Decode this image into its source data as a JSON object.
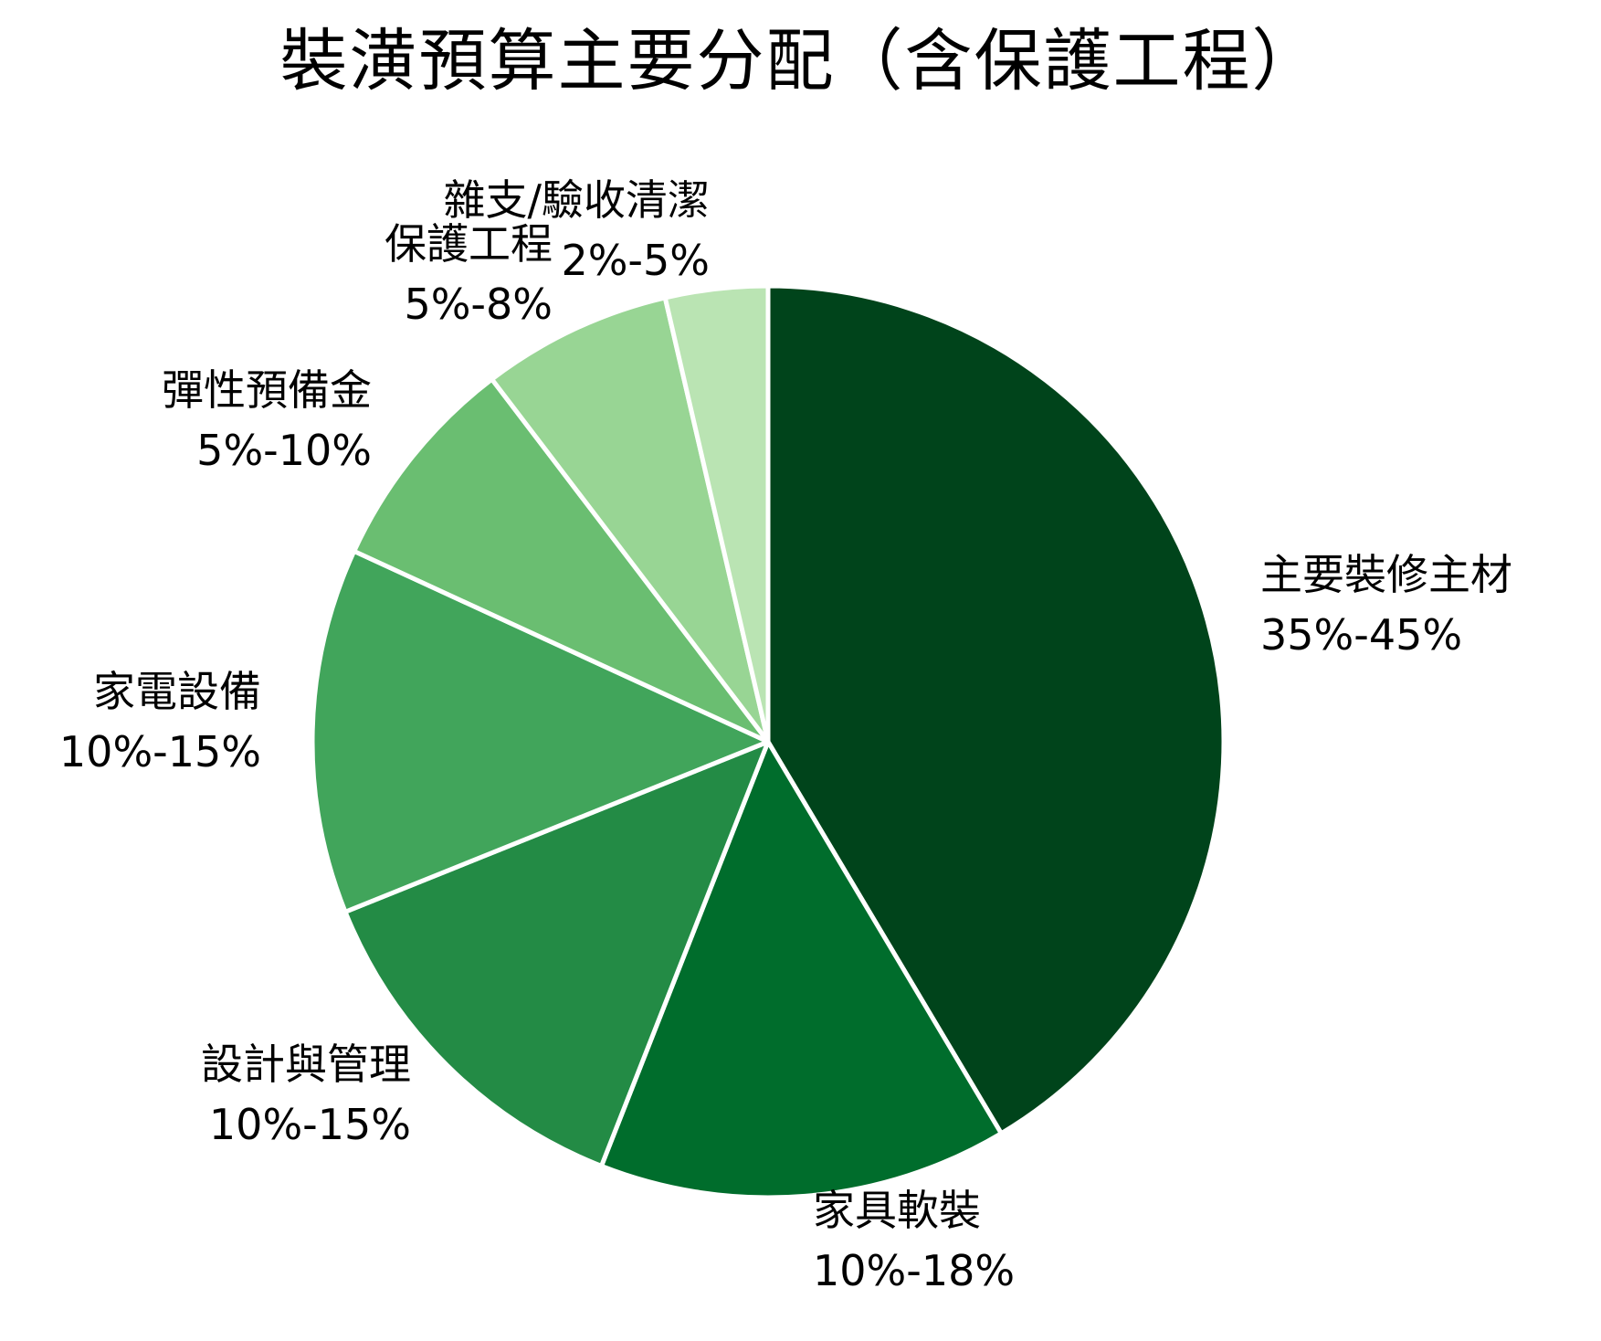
{
  "chart_data": {
    "type": "pie",
    "title": "裝潢預算主要分配（含保護工程）",
    "start_angle_deg": 90,
    "direction": "clockwise",
    "slices": [
      {
        "name": "主要裝修主材",
        "range": "35%-45%",
        "value": 40,
        "color": "#00441b"
      },
      {
        "name": "家具軟裝",
        "range": "10%-18%",
        "value": 14,
        "color": "#006d2c"
      },
      {
        "name": "設計與管理",
        "range": "10%-15%",
        "value": 12.5,
        "color": "#238b45"
      },
      {
        "name": "家電設備",
        "range": "10%-15%",
        "value": 12.5,
        "color": "#41a55b"
      },
      {
        "name": "彈性預備金",
        "range": "5%-10%",
        "value": 7.5,
        "color": "#6abe71"
      },
      {
        "name": "保護工程",
        "range": "5%-8%",
        "value": 6.5,
        "color": "#98d594"
      },
      {
        "name": "雜支/驗收清潔",
        "range": "2%-5%",
        "value": 3.5,
        "color": "#bae4b3"
      }
    ],
    "legend": "none",
    "edge_color": "#ffffff"
  },
  "labels": [
    {
      "name": "主要裝修主材",
      "range": "35%-45%"
    },
    {
      "name": "家具軟裝",
      "range": "10%-18%"
    },
    {
      "name": "設計與管理",
      "range": "10%-15%"
    },
    {
      "name": "家電設備",
      "range": "10%-15%"
    },
    {
      "name": "彈性預備金",
      "range": "5%-10%"
    },
    {
      "name": "保護工程",
      "range": "5%-8%"
    },
    {
      "name": "雜支/驗收清潔",
      "range": "2%-5%"
    }
  ]
}
